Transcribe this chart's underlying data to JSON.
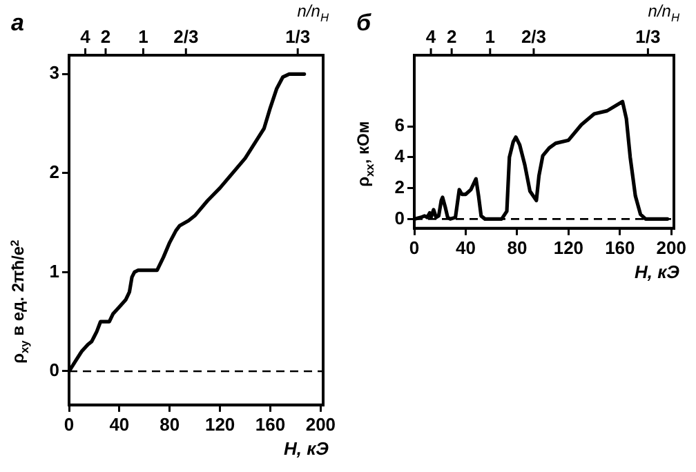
{
  "chart_data": [
    {
      "type": "line",
      "title": "а",
      "xlabel": "H, кЭ",
      "ylabel": "ρ$_{xy}$ в ед. 2πħ/e$^{2}$",
      "marker": "none",
      "line_style": "solid",
      "x": [
        0,
        5,
        10,
        15,
        18,
        20,
        22,
        25,
        32,
        35,
        40,
        45,
        48,
        50,
        52,
        55,
        70,
        75,
        80,
        85,
        88,
        95,
        100,
        110,
        120,
        130,
        140,
        150,
        155,
        160,
        165,
        170,
        175,
        187
      ],
      "series": [
        {
          "color": "#000000",
          "values": [
            0,
            0.1,
            0.2,
            0.27,
            0.3,
            0.35,
            0.4,
            0.5,
            0.5,
            0.58,
            0.65,
            0.72,
            0.8,
            0.95,
            1.0,
            1.02,
            1.02,
            1.15,
            1.3,
            1.42,
            1.47,
            1.52,
            1.57,
            1.72,
            1.85,
            2.0,
            2.15,
            2.35,
            2.45,
            2.66,
            2.85,
            2.97,
            3.0,
            3.0
          ]
        }
      ],
      "xlim": [
        0,
        202
      ],
      "xticks": [
        0,
        40,
        80,
        120,
        160,
        200
      ],
      "ylim": [
        -0.34,
        3.19
      ],
      "yticks": [
        0,
        1,
        2,
        3
      ],
      "annotations": [
        "n/n$_{H}$",
        "4",
        "2",
        "1",
        "2/3",
        "1/3"
      ],
      "ref_lines": [
        {
          "axis": "y",
          "value": 0,
          "line_style": "dashed"
        }
      ]
    },
    {
      "type": "line",
      "title": "б",
      "xlabel": "H, кЭ",
      "ylabel": "ρ$_{xx}$, кОм",
      "marker": "none",
      "line_style": "solid",
      "x": [
        0,
        5,
        8,
        10,
        12,
        13,
        15,
        17,
        19,
        21,
        22,
        24,
        26,
        28,
        32,
        35,
        37,
        40,
        44,
        48,
        50,
        52,
        55,
        68,
        72,
        74,
        77,
        79,
        82,
        86,
        90,
        95,
        97,
        100,
        105,
        110,
        120,
        130,
        140,
        150,
        162,
        165,
        168,
        172,
        176,
        180,
        197
      ],
      "series": [
        {
          "color": "#000000",
          "values": [
            0,
            0.1,
            0.2,
            0.1,
            0.4,
            0.1,
            0.6,
            0.1,
            0.2,
            1.2,
            1.4,
            0.8,
            0.1,
            0,
            0.1,
            1.9,
            1.6,
            1.6,
            1.9,
            2.6,
            1.5,
            0.2,
            0,
            0,
            0.5,
            4.0,
            5.0,
            5.3,
            4.8,
            3.5,
            1.8,
            1.2,
            2.8,
            4.1,
            4.6,
            4.9,
            5.1,
            6.1,
            6.8,
            7.0,
            7.6,
            6.5,
            4.0,
            1.5,
            0.3,
            0,
            0
          ]
        }
      ],
      "xlim": [
        0,
        202
      ],
      "xticks": [
        0,
        40,
        80,
        120,
        160,
        200
      ],
      "ylim": [
        -0.6,
        10.6
      ],
      "yticks": [
        0,
        2,
        4,
        6
      ],
      "annotations": [
        "n/n$_{H}$",
        "4",
        "2",
        "1",
        "2/3",
        "1/3"
      ],
      "ref_lines": [
        {
          "axis": "y",
          "value": 0,
          "line_style": "dashed"
        }
      ]
    }
  ]
}
